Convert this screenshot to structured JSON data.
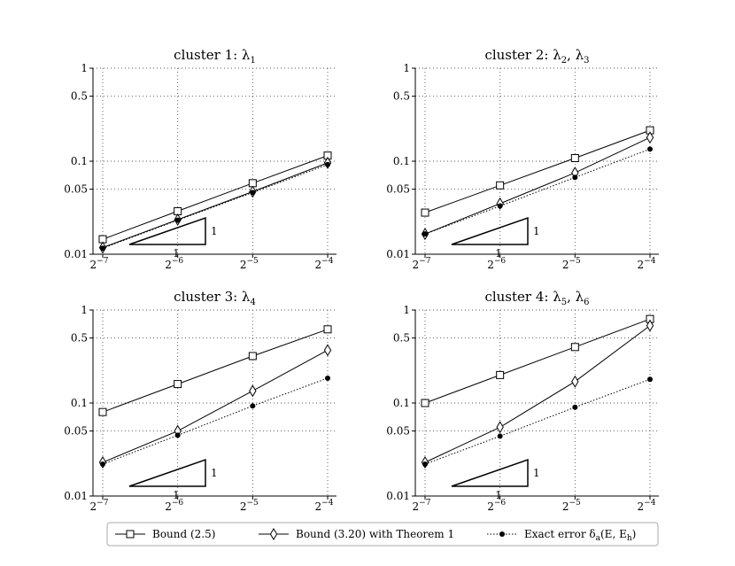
{
  "chart_data": [
    {
      "type": "line",
      "title": "cluster 1: λ",
      "title_sub": "1",
      "x_ticks": [
        {
          "base": "2",
          "exp": "−7"
        },
        {
          "base": "2",
          "exp": "−6"
        },
        {
          "base": "2",
          "exp": "−5"
        },
        {
          "base": "2",
          "exp": "−4"
        }
      ],
      "x": [
        0.0078125,
        0.015625,
        0.03125,
        0.0625
      ],
      "y_scale": "log",
      "x_scale": "log2",
      "ylim": [
        0.01,
        1
      ],
      "y_ticks": [
        "0.01",
        "0.05",
        "0.1",
        "0.5",
        "1"
      ],
      "y_tick_values": [
        0.01,
        0.05,
        0.1,
        0.5,
        1
      ],
      "grid": true,
      "series": [
        {
          "values": [
            0.0145,
            0.029,
            0.058,
            0.115
          ]
        },
        {
          "values": [
            0.0118,
            0.0235,
            0.047,
            0.096
          ]
        },
        {
          "values": [
            0.0116,
            0.0232,
            0.046,
            0.092
          ]
        }
      ],
      "triangle_labels": {
        "vertical": "1",
        "horizontal": "1"
      },
      "triangle_slope": 1
    },
    {
      "type": "line",
      "title": "cluster 2: λ",
      "title_sub": "2",
      "title_extra": ", λ",
      "title_sub2": "3",
      "x_ticks": [
        {
          "base": "2",
          "exp": "−7"
        },
        {
          "base": "2",
          "exp": "−6"
        },
        {
          "base": "2",
          "exp": "−5"
        },
        {
          "base": "2",
          "exp": "−4"
        }
      ],
      "x": [
        0.0078125,
        0.015625,
        0.03125,
        0.0625
      ],
      "y_scale": "log",
      "x_scale": "log2",
      "ylim": [
        0.01,
        1
      ],
      "y_ticks": [
        "0.01",
        "0.05",
        "0.1",
        "0.5",
        "1"
      ],
      "y_tick_values": [
        0.01,
        0.05,
        0.1,
        0.5,
        1
      ],
      "grid": true,
      "series": [
        {
          "values": [
            0.028,
            0.055,
            0.108,
            0.215
          ]
        },
        {
          "values": [
            0.0165,
            0.035,
            0.075,
            0.18
          ]
        },
        {
          "values": [
            0.0165,
            0.033,
            0.067,
            0.135
          ]
        }
      ],
      "triangle_labels": {
        "vertical": "1",
        "horizontal": "1"
      },
      "triangle_slope": 1
    },
    {
      "type": "line",
      "title": "cluster 3: λ",
      "title_sub": "4",
      "x_ticks": [
        {
          "base": "2",
          "exp": "−7"
        },
        {
          "base": "2",
          "exp": "−6"
        },
        {
          "base": "2",
          "exp": "−5"
        },
        {
          "base": "2",
          "exp": "−4"
        }
      ],
      "x": [
        0.0078125,
        0.015625,
        0.03125,
        0.0625
      ],
      "y_scale": "log",
      "x_scale": "log2",
      "ylim": [
        0.01,
        1
      ],
      "y_ticks": [
        "0.01",
        "0.05",
        "0.1",
        "0.5",
        "1"
      ],
      "y_tick_values": [
        0.01,
        0.05,
        0.1,
        0.5,
        1
      ],
      "grid": true,
      "series": [
        {
          "values": [
            0.08,
            0.16,
            0.32,
            0.62
          ]
        },
        {
          "values": [
            0.023,
            0.05,
            0.135,
            0.37
          ]
        },
        {
          "values": [
            0.022,
            0.045,
            0.093,
            0.185
          ]
        }
      ],
      "triangle_labels": {
        "vertical": "1",
        "horizontal": "1"
      },
      "triangle_slope": 1
    },
    {
      "type": "line",
      "title": "cluster 4: λ",
      "title_sub": "5",
      "title_extra": ", λ",
      "title_sub2": "6",
      "x_ticks": [
        {
          "base": "2",
          "exp": "−7"
        },
        {
          "base": "2",
          "exp": "−6"
        },
        {
          "base": "2",
          "exp": "−5"
        },
        {
          "base": "2",
          "exp": "−4"
        }
      ],
      "x": [
        0.0078125,
        0.015625,
        0.03125,
        0.0625
      ],
      "y_scale": "log",
      "x_scale": "log2",
      "ylim": [
        0.01,
        1
      ],
      "y_ticks": [
        "0.01",
        "0.05",
        "0.1",
        "0.5",
        "1"
      ],
      "y_tick_values": [
        0.01,
        0.05,
        0.1,
        0.5,
        1
      ],
      "grid": true,
      "series": [
        {
          "values": [
            0.1,
            0.2,
            0.4,
            0.8
          ]
        },
        {
          "values": [
            0.023,
            0.055,
            0.17,
            0.68
          ]
        },
        {
          "values": [
            0.022,
            0.044,
            0.09,
            0.18
          ]
        }
      ],
      "triangle_labels": {
        "vertical": "1",
        "horizontal": "1"
      },
      "triangle_slope": 1
    }
  ],
  "legend": {
    "placement": "bottom-center",
    "entries": [
      {
        "label": "Bound (2.5)",
        "marker": "square-icon",
        "line": "solid"
      },
      {
        "label": "Bound (3.20) with Theorem 1",
        "marker": "diamond-icon",
        "line": "solid"
      },
      {
        "label": "Exact error δ",
        "sub": "a",
        "label_tail": "(E, E",
        "sub2": "h",
        "label_end": ")",
        "marker": "dot-icon",
        "line": "dotted"
      }
    ]
  },
  "colors": {
    "line": "#000000",
    "grid": "#555555",
    "background": "#ffffff"
  }
}
